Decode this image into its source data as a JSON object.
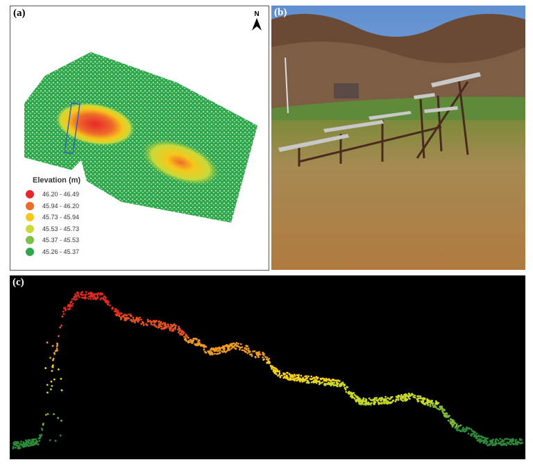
{
  "panels": {
    "a": {
      "label": "(a)",
      "north_label": "N",
      "legend": {
        "title": "Elevation (m)",
        "items": [
          {
            "range": "46.20 - 46.49",
            "color": "#e8262a"
          },
          {
            "range": "45.94 - 46.20",
            "color": "#ee6a2a"
          },
          {
            "range": "45.73 - 45.94",
            "color": "#f7c61a"
          },
          {
            "range": "45.53 - 45.73",
            "color": "#c9da3a"
          },
          {
            "range": "45.37 - 45.53",
            "color": "#7cc045"
          },
          {
            "range": "45.26 - 45.37",
            "color": "#2ea84a"
          }
        ]
      }
    },
    "b": {
      "label": "(b)"
    },
    "c": {
      "label": "(c)"
    }
  }
}
